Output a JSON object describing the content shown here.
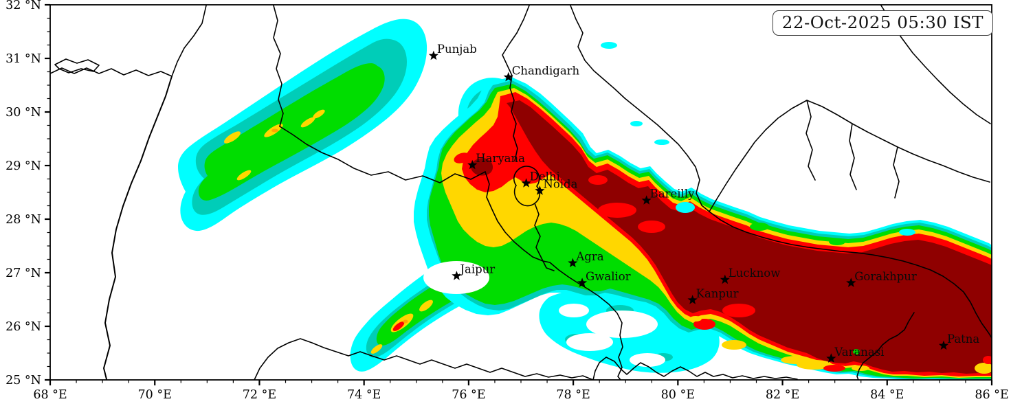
{
  "figure": {
    "timestamp_label": "22-Oct-2025 05:30 IST"
  },
  "axes": {
    "x": {
      "unit": "°E",
      "min": 68,
      "max": 86,
      "major_ticks": [
        68,
        70,
        72,
        74,
        76,
        78,
        80,
        82,
        84,
        86
      ],
      "minor_step": 0.5
    },
    "y": {
      "unit": "°N",
      "min": 25,
      "max": 32,
      "major_ticks": [
        25,
        26,
        27,
        28,
        29,
        30,
        31,
        32
      ],
      "minor_step": 0.25
    }
  },
  "cities": [
    {
      "name": "Punjab",
      "lon": 75.33,
      "lat": 31.05
    },
    {
      "name": "Chandigarh",
      "lon": 76.76,
      "lat": 30.65
    },
    {
      "name": "Haryana",
      "lon": 76.07,
      "lat": 29.01
    },
    {
      "name": "Delhi",
      "lon": 77.1,
      "lat": 28.67
    },
    {
      "name": "Noida",
      "lon": 77.36,
      "lat": 28.53
    },
    {
      "name": "Bareilly",
      "lon": 79.4,
      "lat": 28.35
    },
    {
      "name": "Agra",
      "lon": 77.99,
      "lat": 27.18
    },
    {
      "name": "Jaipur",
      "lon": 75.77,
      "lat": 26.94
    },
    {
      "name": "Gwalior",
      "lon": 78.17,
      "lat": 26.81
    },
    {
      "name": "Lucknow",
      "lon": 80.9,
      "lat": 26.87
    },
    {
      "name": "Kanpur",
      "lon": 80.28,
      "lat": 26.49
    },
    {
      "name": "Gorakhpur",
      "lon": 83.31,
      "lat": 26.81
    },
    {
      "name": "Varanasi",
      "lon": 82.93,
      "lat": 25.4
    },
    {
      "name": "Patna",
      "lon": 85.08,
      "lat": 25.64
    }
  ],
  "palette": {
    "level_colors": [
      "#00FFFF",
      "#00CDB8",
      "#00DD00",
      "#FFD700",
      "#FFA500",
      "#FF0000",
      "#8F0000"
    ],
    "background": "#FFFFFF",
    "boundary": "#000000"
  }
}
